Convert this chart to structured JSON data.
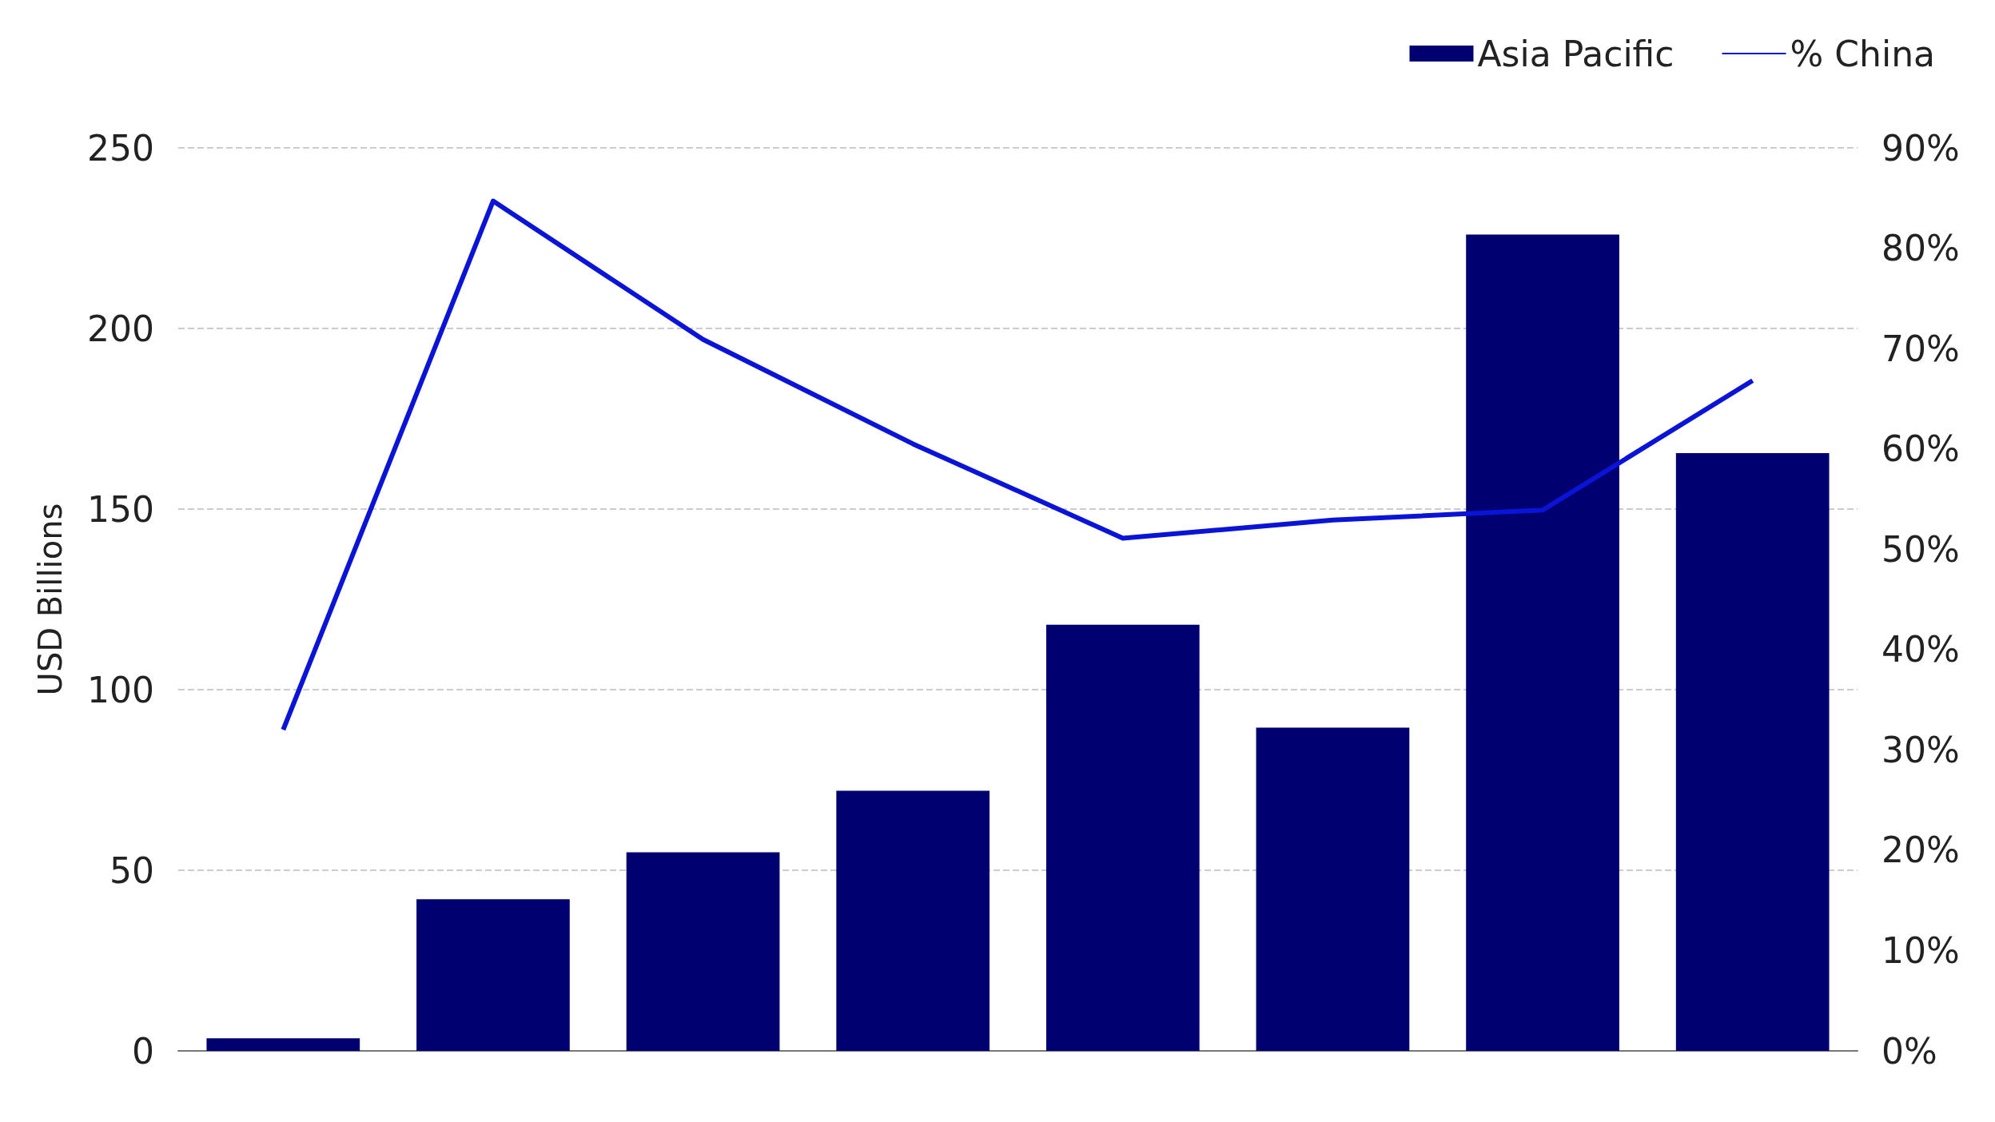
{
  "chart_data": {
    "type": "bar",
    "ylabel": "USD Billions",
    "categories": [
      null,
      null,
      null,
      null,
      null,
      null,
      null,
      null
    ],
    "series": [
      {
        "name": "Asia Pacific",
        "color": "#000070",
        "values": [
          3.5,
          42,
          55,
          72,
          118,
          89.5,
          226,
          165.5
        ]
      },
      {
        "name": "% China",
        "type": "line",
        "axis": "y2",
        "color": "#0a14d6",
        "marker": "none",
        "values": [
          32,
          84.7,
          70.9,
          60.5,
          51.1,
          52.9,
          53.9,
          66.8
        ]
      }
    ],
    "ylim": [
      0,
      250
    ],
    "yticks": [
      0,
      50,
      100,
      150,
      200,
      250
    ],
    "y2lim": [
      0,
      90
    ],
    "y2ticks": [
      {
        "value": 0,
        "label": "0%"
      },
      {
        "value": 10,
        "label": "10%"
      },
      {
        "value": 20,
        "label": "20%"
      },
      {
        "value": 30,
        "label": "30%"
      },
      {
        "value": 40,
        "label": "40%"
      },
      {
        "value": 50,
        "label": "50%"
      },
      {
        "value": 60,
        "label": "60%"
      },
      {
        "value": 70,
        "label": "70%"
      },
      {
        "value": 80,
        "label": "80%"
      },
      {
        "value": 90,
        "label": "90%"
      }
    ],
    "grid": "y",
    "legend": "top right"
  }
}
